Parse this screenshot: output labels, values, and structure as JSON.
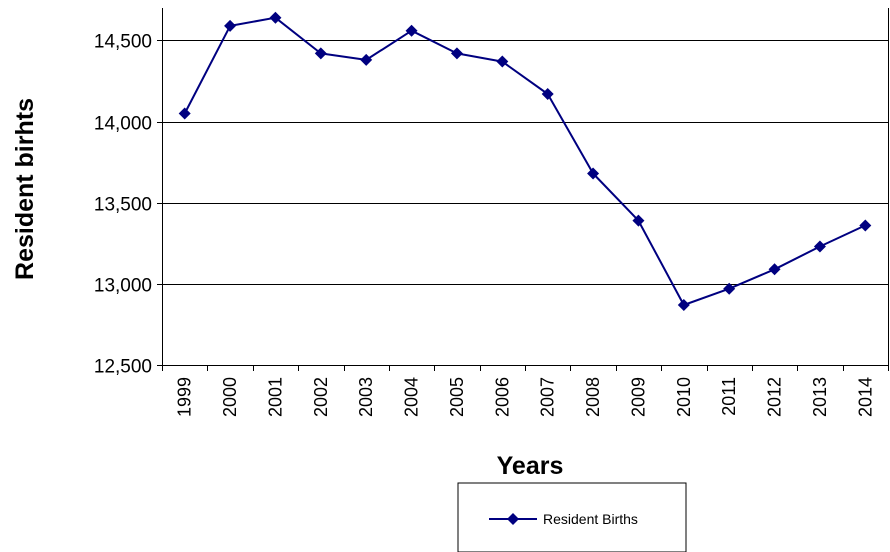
{
  "chart_data": {
    "type": "line",
    "title": "",
    "xlabel": "Years",
    "ylabel": "Resident birhts",
    "categories": [
      "1999",
      "2000",
      "2001",
      "2002",
      "2003",
      "2004",
      "2005",
      "2006",
      "2007",
      "2008",
      "2009",
      "2010",
      "2011",
      "2012",
      "2013",
      "2014"
    ],
    "series": [
      {
        "name": "Resident Births",
        "color": "#000080",
        "marker": "diamond",
        "values": [
          14050,
          14590,
          14640,
          14420,
          14380,
          14560,
          14420,
          14370,
          14170,
          13680,
          13390,
          12870,
          12970,
          13090,
          13230,
          13360
        ]
      }
    ],
    "ylim": [
      12500,
      14700
    ],
    "yticks": [
      12500,
      13000,
      13500,
      14000,
      14500
    ],
    "ytick_labels": [
      "12,500",
      "13,000",
      "13,500",
      "14,000",
      "14,500"
    ],
    "grid": true,
    "legend": "bottom-center"
  }
}
